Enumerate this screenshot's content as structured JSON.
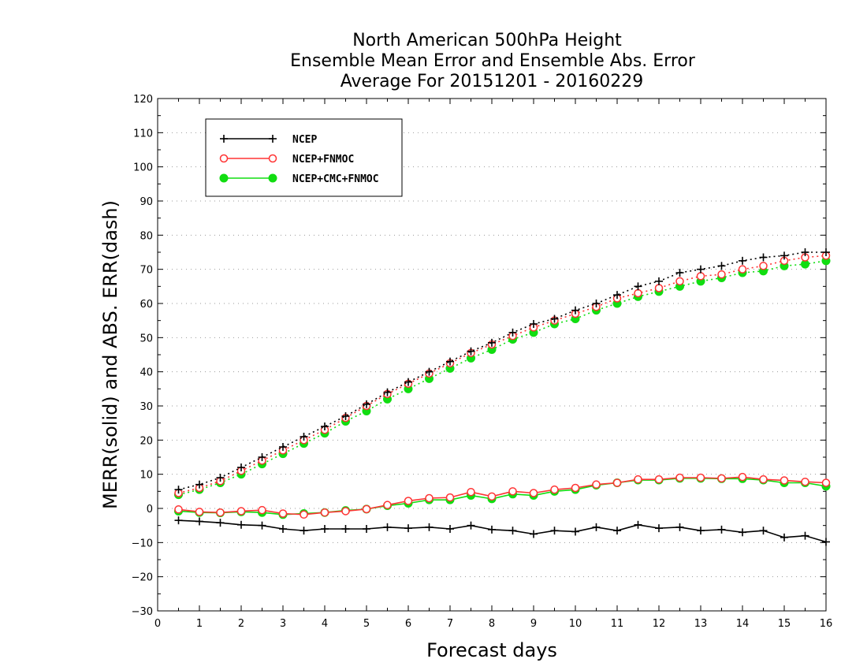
{
  "chart_data": {
    "type": "line",
    "title": [
      "North American 500hPa Height",
      "Ensemble Mean Error and Ensemble Abs. Error",
      "Average For 20151201 - 20160229"
    ],
    "xlabel": "Forecast days",
    "ylabel": "MERR(solid) and ABS. ERR(dash)",
    "xlim": [
      0,
      16
    ],
    "ylim": [
      -30,
      120
    ],
    "x_ticks": [
      0,
      1,
      2,
      3,
      4,
      5,
      6,
      7,
      8,
      9,
      10,
      11,
      12,
      13,
      14,
      15,
      16
    ],
    "y_ticks": [
      -30,
      -20,
      -10,
      0,
      10,
      20,
      30,
      40,
      50,
      60,
      70,
      80,
      90,
      100,
      110,
      120
    ],
    "grid": "horizontal dotted",
    "legend_position": "top-left",
    "x": [
      0.5,
      1.0,
      1.5,
      2.0,
      2.5,
      3.0,
      3.5,
      4.0,
      4.5,
      5.0,
      5.5,
      6.0,
      6.5,
      7.0,
      7.5,
      8.0,
      8.5,
      9.0,
      9.5,
      10.0,
      10.5,
      11.0,
      11.5,
      12.0,
      12.5,
      13.0,
      13.5,
      14.0,
      14.5,
      15.0,
      15.5,
      16.0
    ],
    "series": [
      {
        "name": "NCEP",
        "color": "#000000",
        "marker": "plus",
        "abs_err": [
          5.5,
          7,
          9,
          12,
          15,
          18,
          21,
          24,
          27,
          30.5,
          34,
          37,
          40,
          43,
          46,
          48.5,
          51.5,
          54,
          55.5,
          58,
          60,
          62.5,
          65,
          66.5,
          69,
          70,
          71,
          72.5,
          73.5,
          74,
          75,
          75
        ],
        "mean_err": [
          -3.5,
          -3.8,
          -4.2,
          -4.8,
          -5,
          -6,
          -6.5,
          -6,
          -6,
          -6,
          -5.5,
          -5.8,
          -5.5,
          -6,
          -5,
          -6.2,
          -6.5,
          -7.5,
          -6.5,
          -6.8,
          -5.5,
          -6.5,
          -4.8,
          -5.8,
          -5.5,
          -6.5,
          -6.2,
          -7,
          -6.5,
          -8.5,
          -8,
          -9.8
        ]
      },
      {
        "name": "NCEP+FNMOC",
        "color": "#ff3333",
        "marker": "open-circle",
        "abs_err": [
          4.5,
          6,
          8,
          11,
          14,
          17,
          20,
          23,
          26.5,
          30,
          33.5,
          36.5,
          39.5,
          42.5,
          45.5,
          48,
          50.5,
          53,
          55,
          57,
          59,
          61.5,
          63,
          64.5,
          66.5,
          68,
          68.5,
          70,
          71,
          72.5,
          73.5,
          74
        ],
        "mean_err": [
          -0.3,
          -1,
          -1.2,
          -0.8,
          -0.5,
          -1.5,
          -1.8,
          -1.2,
          -0.8,
          -0.2,
          1,
          2.2,
          3,
          3.2,
          4.8,
          3.5,
          5,
          4.5,
          5.5,
          6,
          7,
          7.5,
          8.5,
          8.5,
          9,
          9,
          8.8,
          9.2,
          8.5,
          8.2,
          7.8,
          7.5
        ]
      },
      {
        "name": "NCEP+CMC+FNMOC",
        "color": "#11dd11",
        "marker": "filled-circle",
        "abs_err": [
          4,
          5.5,
          7.5,
          10,
          13,
          16,
          19,
          22,
          25.5,
          28.5,
          32,
          35,
          38,
          41,
          44,
          46.5,
          49.5,
          51.5,
          54,
          55.5,
          58,
          60,
          62,
          63.5,
          65,
          66.5,
          67.5,
          69,
          69.5,
          71,
          71.5,
          72.5
        ],
        "mean_err": [
          -0.8,
          -1.2,
          -1.3,
          -1,
          -1.2,
          -1.8,
          -1.5,
          -1.2,
          -0.6,
          -0.2,
          0.8,
          1.5,
          2.5,
          2.5,
          3.8,
          2.8,
          4.2,
          3.8,
          5,
          5.5,
          6.8,
          7.5,
          8.3,
          8.3,
          8.8,
          8.8,
          8.7,
          8.7,
          8.3,
          7.5,
          7.5,
          6.5
        ]
      }
    ]
  }
}
